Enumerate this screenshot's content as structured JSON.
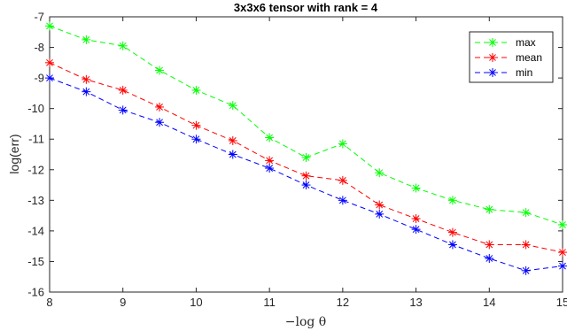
{
  "chart_data": {
    "type": "line",
    "title": "3x3x6 tensor with rank = 4",
    "xlabel": "−log θ",
    "ylabel": "log(err)",
    "xlim": [
      8,
      15
    ],
    "ylim": [
      -16,
      -7
    ],
    "xticks": [
      8,
      9,
      10,
      11,
      12,
      13,
      14,
      15
    ],
    "yticks": [
      -7,
      -8,
      -9,
      -10,
      -11,
      -12,
      -13,
      -14,
      -15,
      -16
    ],
    "x": [
      8,
      8.5,
      9,
      9.5,
      10,
      10.5,
      11,
      11.5,
      12,
      12.5,
      13,
      13.5,
      14,
      14.5,
      15
    ],
    "series": [
      {
        "name": "max",
        "color": "#00ff00",
        "marker": "asterisk",
        "line": "dashed",
        "values": [
          -7.3,
          -7.75,
          -7.95,
          -8.75,
          -9.4,
          -9.9,
          -10.95,
          -11.6,
          -11.15,
          -12.1,
          -12.6,
          -13.0,
          -13.3,
          -13.4,
          -13.8
        ]
      },
      {
        "name": "mean",
        "color": "#ff0000",
        "marker": "asterisk",
        "line": "dashed",
        "values": [
          -8.5,
          -9.05,
          -9.4,
          -9.95,
          -10.55,
          -11.05,
          -11.7,
          -12.2,
          -12.35,
          -13.15,
          -13.6,
          -14.05,
          -14.45,
          -14.45,
          -14.7
        ]
      },
      {
        "name": "min",
        "color": "#0000ff",
        "marker": "asterisk",
        "line": "dashed",
        "values": [
          -9.0,
          -9.45,
          -10.05,
          -10.45,
          -11.0,
          -11.5,
          -11.95,
          -12.5,
          -13.0,
          -13.45,
          -13.95,
          -14.45,
          -14.9,
          -15.3,
          -15.15
        ]
      }
    ],
    "grid": false,
    "legend_position": "top-right"
  }
}
